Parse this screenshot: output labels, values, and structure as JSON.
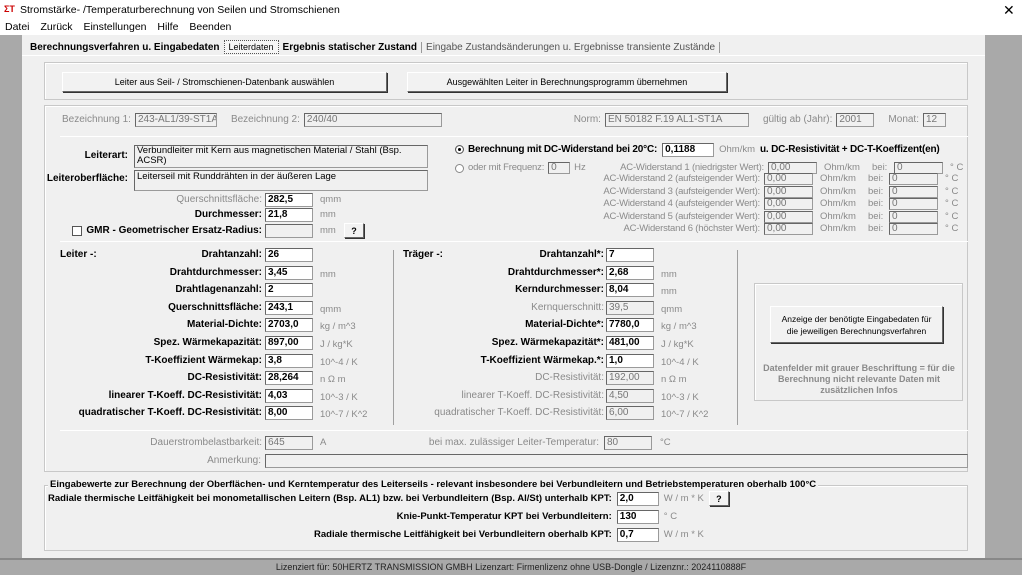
{
  "window": {
    "title": "Stromstärke- /Temperaturberechnung von Seilen und Stromschienen",
    "close_icon": "close-icon"
  },
  "menu": [
    "Datei",
    "Zurück",
    "Einstellungen",
    "Hilfe",
    "Beenden"
  ],
  "tabs": [
    "Berechnungsverfahren u. Eingabedaten",
    "Leiterdaten",
    "Ergebnis statischer Zustand",
    "Eingabe Zustandsänderungen u. Ergebnisse transiente Zustände"
  ],
  "active_tab": "Leiterdaten",
  "buttons": {
    "select_db": "Leiter aus Seil- / Stromschienen-Datenbank auswählen",
    "apply": "Ausgewählten Leiter in Berechnungsprogramm übernehmen",
    "info": "Anzeige der benötigte Eingabedaten für die jeweiligen Berechnungsverfahren",
    "help": "?"
  },
  "header": {
    "bez1_label": "Bezeichnung 1:",
    "bez1": "243-AL1/39-ST1A",
    "bez2_label": "Bezeichnung 2:",
    "bez2": "240/40",
    "norm_label": "Norm:",
    "norm": "EN 50182 F.19 AL1-ST1A",
    "year_label": "gültig ab (Jahr):",
    "year": "2001",
    "month_label": "Monat:",
    "month": "12"
  },
  "general": {
    "leiterart_label": "Leiterart:",
    "leiterart": "Verbundleiter mit Kern aus magnetischen Material / Stahl  (Bsp. ACSR)",
    "oberflaeche_label": "Leiteroberfläche:",
    "oberflaeche": "Leiterseil mit  Runddrähten in der äußeren Lage",
    "querschnitt_label": "Querschnittsfläche:",
    "querschnitt": "282,5",
    "querschnitt_unit": "qmm",
    "durchmesser_label": "Durchmesser:",
    "durchmesser": "21,8",
    "durchmesser_unit": "mm",
    "gmr_label": "GMR - Geometrischer Ersatz-Radius:",
    "gmr": "",
    "gmr_unit": "mm",
    "gmr_checked": false
  },
  "resistance": {
    "dc_label": "Berechnung mit DC-Widerstand bei 20°C:",
    "dc_value": "0,1188",
    "dc_unit": "Ohm/km",
    "dc_suffix": "u. DC-Resistivität + DC-T-Koeffizent(en)",
    "dc_selected": true,
    "freq_label": "oder mit Frequenz:",
    "freq": "0",
    "freq_unit": "Hz",
    "ac_rows": [
      {
        "label": "AC-Widerstand 1 (niedrigster Wert):",
        "value": "0,00",
        "unit": "Ohm/km",
        "bei": "bei:",
        "temp": "0",
        "temp_unit": "° C"
      },
      {
        "label": "AC-Widerstand 2 (aufsteigender Wert):",
        "value": "0,00",
        "unit": "Ohm/km",
        "bei": "bei:",
        "temp": "0",
        "temp_unit": "° C"
      },
      {
        "label": "AC-Widerstand 3 (aufsteigender Wert):",
        "value": "0,00",
        "unit": "Ohm/km",
        "bei": "bei:",
        "temp": "0",
        "temp_unit": "° C"
      },
      {
        "label": "AC-Widerstand 4 (aufsteigender Wert):",
        "value": "0,00",
        "unit": "Ohm/km",
        "bei": "bei:",
        "temp": "0",
        "temp_unit": "° C"
      },
      {
        "label": "AC-Widerstand 5 (aufsteigender Wert):",
        "value": "0,00",
        "unit": "Ohm/km",
        "bei": "bei:",
        "temp": "0",
        "temp_unit": "° C"
      },
      {
        "label": "AC-Widerstand 6 (höchster Wert):",
        "value": "0,00",
        "unit": "Ohm/km",
        "bei": "bei:",
        "temp": "0",
        "temp_unit": "° C"
      }
    ]
  },
  "leiter": {
    "title": "Leiter -:",
    "rows": [
      {
        "label": "Drahtanzahl:",
        "value": "26",
        "unit": "",
        "grey": false
      },
      {
        "label": "Drahtdurchmesser:",
        "value": "3,45",
        "unit": "mm",
        "grey": false
      },
      {
        "label": "Drahtlagenanzahl:",
        "value": "2",
        "unit": "",
        "grey": false
      },
      {
        "label": "Querschnittsfläche:",
        "value": "243,1",
        "unit": "qmm",
        "grey": false
      },
      {
        "label": "Material-Dichte:",
        "value": "2703,0",
        "unit": "kg / m^3",
        "grey": false
      },
      {
        "label": "Spez. Wärmekapazität:",
        "value": "897,00",
        "unit": "J / kg*K",
        "grey": false
      },
      {
        "label": "T-Koeffizient Wärmekap:",
        "value": "3,8",
        "unit": "10^-4 / K",
        "grey": false
      },
      {
        "label": "DC-Resistivität:",
        "value": "28,264",
        "unit": "n Ω m",
        "grey": false
      },
      {
        "label": "linearer T-Koeff. DC-Resistivität:",
        "value": "4,03",
        "unit": "10^-3 / K",
        "grey": false
      },
      {
        "label": "quadratischer T-Koeff. DC-Resistivität:",
        "value": "8,00",
        "unit": "10^-7 / K^2",
        "grey": false
      }
    ]
  },
  "traeger": {
    "title": "Träger -:",
    "rows": [
      {
        "label": "Drahtanzahl*:",
        "value": "7",
        "unit": "",
        "grey": false
      },
      {
        "label": "Drahtdurchmesser*:",
        "value": "2,68",
        "unit": "mm",
        "grey": false
      },
      {
        "label": "Kerndurchmesser:",
        "value": "8,04",
        "unit": "mm",
        "grey": false
      },
      {
        "label": "Kernquerschnitt:",
        "value": "39,5",
        "unit": "qmm",
        "grey": true
      },
      {
        "label": "Material-Dichte*:",
        "value": "7780,0",
        "unit": "kg / m^3",
        "grey": false
      },
      {
        "label": "Spez. Wärmekapazität*:",
        "value": "481,00",
        "unit": "J / kg*K",
        "grey": false
      },
      {
        "label": "T-Koeffizient Wärmekap.*:",
        "value": "1,0",
        "unit": "10^-4 / K",
        "grey": false
      },
      {
        "label": "DC-Resistivität:",
        "value": "192,00",
        "unit": "n Ω m",
        "grey": true
      },
      {
        "label": "linearer T-Koeff. DC-Resistivität:",
        "value": "4,50",
        "unit": "10^-3 / K",
        "grey": true
      },
      {
        "label": "quadratischer T-Koeff. DC-Resistivität:",
        "value": "6,00",
        "unit": "10^-7 / K^2",
        "grey": true
      }
    ]
  },
  "info_note": "Datenfelder mit grauer Beschriftung = für die Berechnung nicht relevante Daten mit zusätzlichen Infos",
  "footer_fields": {
    "dauer_label": "Dauerstrombelastbarkeit:",
    "dauer": "645",
    "dauer_unit": "A",
    "maxtemp_label": "bei max. zulässiger Leiter-Temperatur:",
    "maxtemp": "80",
    "maxtemp_unit": "°C",
    "anmerkung_label": "Anmerkung:",
    "anmerkung": ""
  },
  "thermal": {
    "legend": "Eingabewerte zur Berechnung der Oberflächen- und Kerntemperatur des Leiterseils - relevant insbesondere bei Verbundleitern und Betriebstemperaturen oberhalb 100°C",
    "rows": [
      {
        "label": "Radiale thermische Leitfähigkeit bei monometallischen Leitern (Bsp. AL1) bzw. bei Verbundleitern (Bsp. Al/St) unterhalb KPT:",
        "value": "2,0",
        "unit": "W / m * K"
      },
      {
        "label": "Knie-Punkt-Temperatur KPT bei Verbundleitern:",
        "value": "130",
        "unit": "° C"
      },
      {
        "label": "Radiale thermische Leitfähigkeit bei Verbundleitern oberhalb KPT:",
        "value": "0,7",
        "unit": "W / m * K"
      }
    ]
  },
  "status": "Lizenziert für: 50HERTZ TRANSMISSION GMBH Lizenzart: Firmenlizenz ohne USB-Dongle / Lizenznr.: 2024110888F"
}
